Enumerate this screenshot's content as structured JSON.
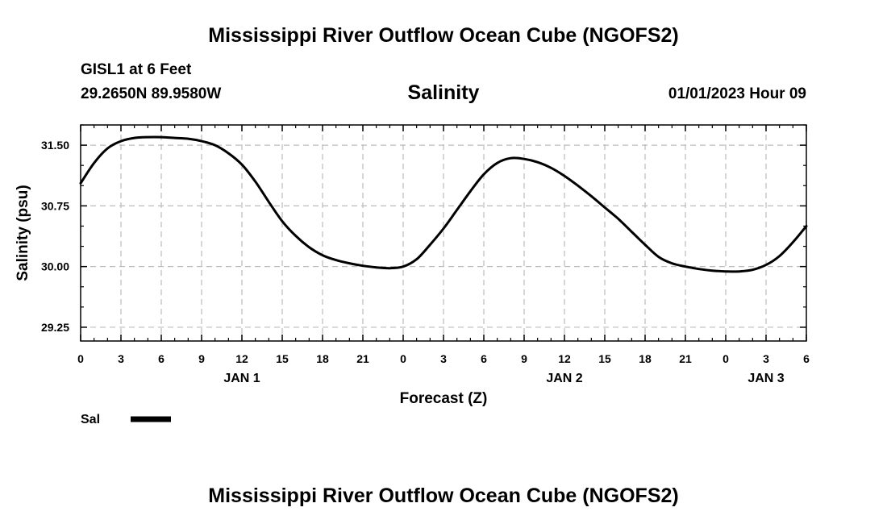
{
  "page": {
    "title_top": "Mississippi River Outflow Ocean Cube (NGOFS2)",
    "title_bottom": "Mississippi River Outflow Ocean Cube (NGOFS2)",
    "station": "GISL1 at 6 Feet",
    "coords": "29.2650N  89.9580W",
    "datetime": "01/01/2023 Hour 09"
  },
  "chart_data": {
    "type": "line",
    "title": "Salinity",
    "xlabel": "Forecast (Z)",
    "ylabel": "Salinity (psu)",
    "xlim": [
      0,
      54
    ],
    "ylim": [
      29.08,
      31.75
    ],
    "grid": true,
    "x_ticks": [
      0,
      3,
      6,
      9,
      12,
      15,
      18,
      21,
      24,
      27,
      30,
      33,
      36,
      39,
      42,
      45,
      48,
      51,
      54
    ],
    "x_tick_labels": [
      "0",
      "3",
      "6",
      "9",
      "12",
      "15",
      "18",
      "21",
      "0",
      "3",
      "6",
      "9",
      "12",
      "15",
      "18",
      "21",
      "0",
      "3",
      "6"
    ],
    "y_ticks": [
      29.25,
      30.0,
      30.75,
      31.5
    ],
    "y_tick_labels": [
      "29.25",
      "30.00",
      "30.75",
      "31.50"
    ],
    "day_labels": [
      {
        "x": 12,
        "label": "JAN 1"
      },
      {
        "x": 36,
        "label": "JAN 2"
      },
      {
        "x": 51,
        "label": "JAN 3"
      }
    ],
    "legend": [
      {
        "name": "Sal",
        "color": "#000000"
      }
    ],
    "series": [
      {
        "name": "Sal",
        "color": "#000000",
        "x": [
          0,
          1,
          2,
          3,
          4,
          5,
          6,
          7,
          8,
          9,
          10,
          11,
          12,
          13,
          14,
          15,
          16,
          17,
          18,
          19,
          20,
          21,
          22,
          23,
          24,
          25,
          26,
          27,
          28,
          29,
          30,
          31,
          32,
          33,
          34,
          35,
          36,
          37,
          38,
          39,
          40,
          41,
          42,
          43,
          44,
          45,
          46,
          47,
          48,
          49,
          50,
          51,
          52,
          53,
          54
        ],
        "values": [
          31.03,
          31.28,
          31.46,
          31.55,
          31.59,
          31.6,
          31.6,
          31.59,
          31.58,
          31.55,
          31.5,
          31.4,
          31.26,
          31.05,
          30.8,
          30.56,
          30.38,
          30.24,
          30.14,
          30.08,
          30.04,
          30.01,
          29.99,
          29.98,
          30.0,
          30.09,
          30.27,
          30.47,
          30.7,
          30.93,
          31.14,
          31.28,
          31.34,
          31.33,
          31.29,
          31.22,
          31.12,
          31.0,
          30.87,
          30.73,
          30.59,
          30.43,
          30.27,
          30.12,
          30.04,
          30.0,
          29.97,
          29.95,
          29.94,
          29.94,
          29.96,
          30.02,
          30.13,
          30.3,
          30.5
        ]
      }
    ]
  }
}
